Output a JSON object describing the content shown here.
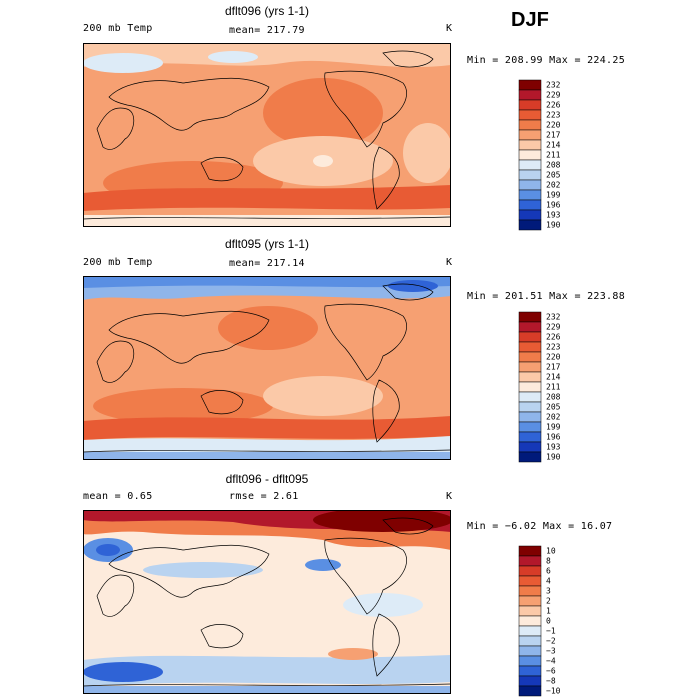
{
  "season": "DJF",
  "panels": [
    {
      "title": "dflt096 (yrs 1-1)",
      "left_label": "200 mb Temp",
      "mean_text": "mean= 217.79",
      "rmse_text": "",
      "units": "K",
      "minmax": "Min = 208.99 Max = 224.25",
      "colorbar_labels": [
        "232",
        "229",
        "226",
        "223",
        "220",
        "217",
        "214",
        "211",
        "208",
        "205",
        "202",
        "199",
        "196",
        "193",
        "190"
      ]
    },
    {
      "title": "dflt095 (yrs 1-1)",
      "left_label": "200 mb Temp",
      "mean_text": "mean= 217.14",
      "rmse_text": "",
      "units": "K",
      "minmax": "Min = 201.51 Max = 223.88",
      "colorbar_labels": [
        "232",
        "229",
        "226",
        "223",
        "220",
        "217",
        "214",
        "211",
        "208",
        "205",
        "202",
        "199",
        "196",
        "193",
        "190"
      ]
    },
    {
      "title": "dflt096 - dflt095",
      "left_label": "mean =   0.65",
      "mean_text": "",
      "rmse_text": "rmse =   2.61",
      "units": "K",
      "minmax": "Min =  −6.02 Max =  16.07",
      "colorbar_labels": [
        "10",
        "8",
        "6",
        "4",
        "3",
        "2",
        "1",
        "0",
        "−1",
        "−2",
        "−3",
        "−4",
        "−6",
        "−8",
        "−10"
      ]
    }
  ],
  "chart_data": [
    {
      "type": "heatmap",
      "title": "dflt096 (yrs 1-1)",
      "variable": "200 mb Temp",
      "units": "K",
      "mean": 217.79,
      "min": 208.99,
      "max": 224.25,
      "contour_levels": [
        190,
        193,
        196,
        199,
        202,
        205,
        208,
        211,
        214,
        217,
        220,
        223,
        226,
        229,
        232
      ]
    },
    {
      "type": "heatmap",
      "title": "dflt095 (yrs 1-1)",
      "variable": "200 mb Temp",
      "units": "K",
      "mean": 217.14,
      "min": 201.51,
      "max": 223.88,
      "contour_levels": [
        190,
        193,
        196,
        199,
        202,
        205,
        208,
        211,
        214,
        217,
        220,
        223,
        226,
        229,
        232
      ]
    },
    {
      "type": "heatmap",
      "title": "dflt096 - dflt095",
      "units": "K",
      "mean": 0.65,
      "rmse": 2.61,
      "min": -6.02,
      "max": 16.07,
      "contour_levels": [
        -10,
        -8,
        -6,
        -4,
        -3,
        -2,
        -1,
        0,
        1,
        2,
        3,
        4,
        6,
        8,
        10
      ]
    }
  ],
  "colors": {
    "warm_scale": [
      "#7f0000",
      "#b2182b",
      "#d73c28",
      "#e85b34",
      "#f07c4a",
      "#f6a072",
      "#fbc9a8",
      "#fdebdc",
      "#ddebf7",
      "#b9d3f0",
      "#8fb5ea",
      "#5a8fe3",
      "#2f63d6",
      "#1538b8",
      "#001a7a"
    ],
    "map_bg": "#fde3d2",
    "coast": "#000000"
  }
}
